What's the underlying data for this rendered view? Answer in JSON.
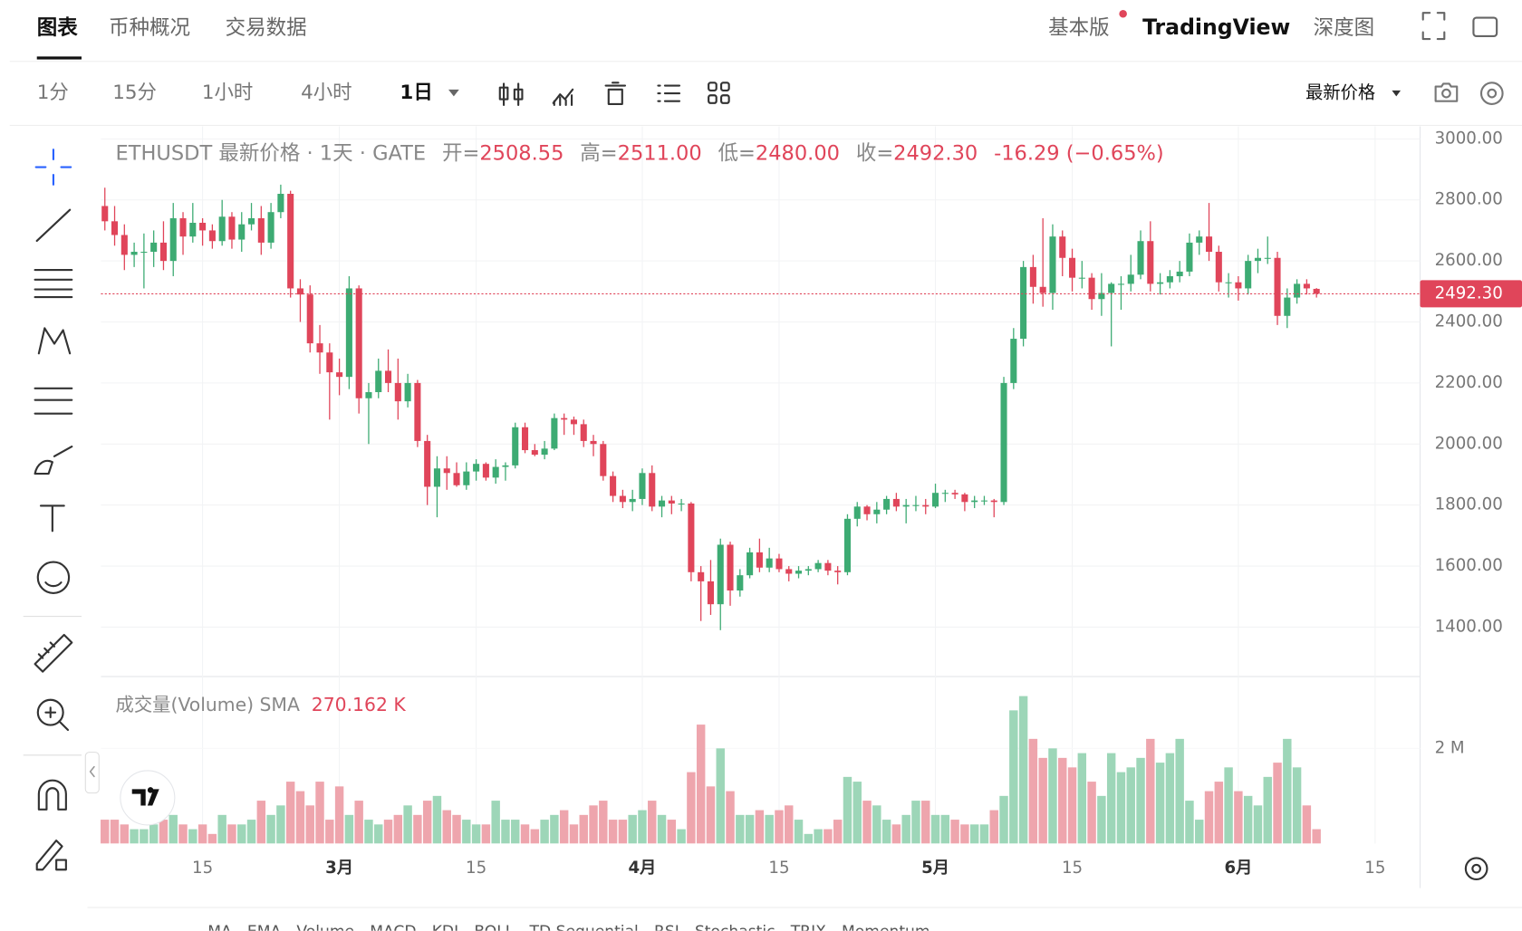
{
  "tabs": [
    "图表",
    "币种概况",
    "交易数据"
  ],
  "header_right": {
    "basic": "基本版",
    "tradingview": "TradingView",
    "depth": "深度图"
  },
  "intervals": [
    "1分",
    "15分",
    "1小时",
    "4小时",
    "1日"
  ],
  "price_source": "最新价格",
  "legend": {
    "symbol": "ETHUSDT 最新价格 · 1天 · GATE",
    "items": [
      {
        "label": "开=",
        "value": "2508.55"
      },
      {
        "label": "高=",
        "value": "2511.00"
      },
      {
        "label": "低=",
        "value": "2480.00"
      },
      {
        "label": "收=",
        "value": "2492.30"
      }
    ],
    "change": "-16.29 (−0.65%)"
  },
  "volume_legend": {
    "title": "成交量(Volume) SMA",
    "value": "270.162 K"
  },
  "indicators": [
    "MA",
    "EMA",
    "Volume",
    "MACD",
    "KDJ",
    "BOLL",
    "TD Sequential",
    "RSI",
    "Stochastic",
    "TRIX",
    "Momentum"
  ],
  "chart_data": [
    {
      "type": "candlestick",
      "up_color": "#3dab73",
      "down_color": "#e0455a",
      "xlim": [
        -0.4,
        134.6
      ],
      "xticks": [
        {
          "value": 10,
          "label": "15"
        },
        {
          "value": 24,
          "label": "3月"
        },
        {
          "value": 38,
          "label": "15"
        },
        {
          "value": 55,
          "label": "4月"
        },
        {
          "value": 69,
          "label": "15"
        },
        {
          "value": 85,
          "label": "5月"
        },
        {
          "value": 99,
          "label": "15"
        },
        {
          "value": 116,
          "label": "6月"
        },
        {
          "value": 130,
          "label": "15"
        }
      ],
      "ylim": [
        1238,
        3041
      ],
      "yticks": [
        {
          "value": 1400,
          "label": "1400.00"
        },
        {
          "value": 1600,
          "label": "1600.00"
        },
        {
          "value": 1800,
          "label": "1800.00"
        },
        {
          "value": 2000,
          "label": "2000.00"
        },
        {
          "value": 2200,
          "label": "2200.00"
        },
        {
          "value": 2400,
          "label": "2400.00"
        },
        {
          "value": 2600,
          "label": "2600.00"
        },
        {
          "value": 2800,
          "label": "2800.00"
        },
        {
          "value": 3000,
          "label": "3000.00"
        }
      ],
      "grid": true,
      "last_value_label": "2492.30",
      "candles": [
        [
          2780,
          2840,
          2700,
          2730
        ],
        [
          2730,
          2780,
          2650,
          2685
        ],
        [
          2685,
          2720,
          2570,
          2620
        ],
        [
          2620,
          2660,
          2580,
          2630
        ],
        [
          2630,
          2690,
          2510,
          2630
        ],
        [
          2630,
          2700,
          2580,
          2660
        ],
        [
          2660,
          2730,
          2570,
          2600
        ],
        [
          2600,
          2790,
          2550,
          2740
        ],
        [
          2740,
          2760,
          2620,
          2680
        ],
        [
          2680,
          2790,
          2660,
          2725
        ],
        [
          2725,
          2740,
          2650,
          2700
        ],
        [
          2700,
          2720,
          2640,
          2665
        ],
        [
          2665,
          2800,
          2650,
          2745
        ],
        [
          2745,
          2760,
          2640,
          2670
        ],
        [
          2670,
          2760,
          2630,
          2720
        ],
        [
          2720,
          2790,
          2700,
          2740
        ],
        [
          2740,
          2780,
          2620,
          2660
        ],
        [
          2660,
          2790,
          2640,
          2760
        ],
        [
          2760,
          2850,
          2740,
          2820
        ],
        [
          2820,
          2830,
          2480,
          2510
        ],
        [
          2510,
          2540,
          2400,
          2490
        ],
        [
          2490,
          2520,
          2300,
          2330
        ],
        [
          2330,
          2390,
          2230,
          2300
        ],
        [
          2300,
          2330,
          2080,
          2235
        ],
        [
          2235,
          2280,
          2160,
          2220
        ],
        [
          2220,
          2550,
          2180,
          2510
        ],
        [
          2510,
          2520,
          2100,
          2150
        ],
        [
          2150,
          2200,
          2000,
          2170
        ],
        [
          2170,
          2280,
          2150,
          2240
        ],
        [
          2240,
          2310,
          2170,
          2200
        ],
        [
          2200,
          2280,
          2080,
          2140
        ],
        [
          2140,
          2230,
          2120,
          2200
        ],
        [
          2200,
          2210,
          1990,
          2010
        ],
        [
          2010,
          2030,
          1800,
          1860
        ],
        [
          1860,
          1960,
          1760,
          1920
        ],
        [
          1920,
          1960,
          1850,
          1905
        ],
        [
          1905,
          1940,
          1860,
          1865
        ],
        [
          1865,
          1940,
          1850,
          1910
        ],
        [
          1910,
          1950,
          1880,
          1935
        ],
        [
          1935,
          1940,
          1880,
          1890
        ],
        [
          1890,
          1950,
          1870,
          1925
        ],
        [
          1925,
          1940,
          1880,
          1930
        ],
        [
          1930,
          2070,
          1920,
          2055
        ],
        [
          2055,
          2070,
          1970,
          1980
        ],
        [
          1980,
          2000,
          1960,
          1965
        ],
        [
          1965,
          2010,
          1950,
          1985
        ],
        [
          1985,
          2100,
          1980,
          2085
        ],
        [
          2085,
          2100,
          2030,
          2080
        ],
        [
          2080,
          2090,
          2030,
          2065
        ],
        [
          2065,
          2080,
          1990,
          2010
        ],
        [
          2010,
          2030,
          1960,
          2000
        ],
        [
          2000,
          2010,
          1880,
          1895
        ],
        [
          1895,
          1910,
          1810,
          1830
        ],
        [
          1830,
          1850,
          1790,
          1810
        ],
        [
          1810,
          1850,
          1780,
          1820
        ],
        [
          1820,
          1920,
          1800,
          1905
        ],
        [
          1905,
          1930,
          1780,
          1795
        ],
        [
          1795,
          1830,
          1760,
          1815
        ],
        [
          1815,
          1830,
          1770,
          1805
        ],
        [
          1805,
          1820,
          1780,
          1805
        ],
        [
          1805,
          1810,
          1550,
          1580
        ],
        [
          1580,
          1600,
          1420,
          1550
        ],
        [
          1550,
          1620,
          1440,
          1475
        ],
        [
          1475,
          1690,
          1390,
          1670
        ],
        [
          1670,
          1680,
          1470,
          1520
        ],
        [
          1520,
          1590,
          1500,
          1570
        ],
        [
          1570,
          1660,
          1560,
          1645
        ],
        [
          1645,
          1690,
          1580,
          1595
        ],
        [
          1595,
          1660,
          1580,
          1625
        ],
        [
          1625,
          1640,
          1580,
          1590
        ],
        [
          1590,
          1600,
          1550,
          1575
        ],
        [
          1575,
          1600,
          1560,
          1585
        ],
        [
          1585,
          1600,
          1570,
          1590
        ],
        [
          1590,
          1620,
          1580,
          1610
        ],
        [
          1610,
          1620,
          1570,
          1585
        ],
        [
          1585,
          1600,
          1540,
          1580
        ],
        [
          1580,
          1770,
          1570,
          1755
        ],
        [
          1755,
          1810,
          1730,
          1795
        ],
        [
          1795,
          1800,
          1750,
          1770
        ],
        [
          1770,
          1810,
          1740,
          1785
        ],
        [
          1785,
          1830,
          1770,
          1820
        ],
        [
          1820,
          1840,
          1780,
          1795
        ],
        [
          1795,
          1820,
          1740,
          1800
        ],
        [
          1800,
          1830,
          1780,
          1800
        ],
        [
          1800,
          1820,
          1770,
          1795
        ],
        [
          1795,
          1870,
          1790,
          1840
        ],
        [
          1840,
          1850,
          1810,
          1840
        ],
        [
          1840,
          1850,
          1820,
          1835
        ],
        [
          1835,
          1840,
          1780,
          1810
        ],
        [
          1810,
          1830,
          1790,
          1815
        ],
        [
          1815,
          1830,
          1800,
          1815
        ],
        [
          1815,
          1820,
          1760,
          1810
        ],
        [
          1810,
          2220,
          1800,
          2200
        ],
        [
          2200,
          2380,
          2180,
          2345
        ],
        [
          2345,
          2600,
          2320,
          2580
        ],
        [
          2580,
          2620,
          2460,
          2515
        ],
        [
          2515,
          2740,
          2450,
          2495
        ],
        [
          2495,
          2720,
          2440,
          2680
        ],
        [
          2680,
          2700,
          2550,
          2610
        ],
        [
          2610,
          2640,
          2500,
          2545
        ],
        [
          2545,
          2600,
          2510,
          2545
        ],
        [
          2545,
          2560,
          2440,
          2475
        ],
        [
          2475,
          2560,
          2420,
          2495
        ],
        [
          2495,
          2530,
          2320,
          2525
        ],
        [
          2525,
          2550,
          2440,
          2525
        ],
        [
          2525,
          2620,
          2500,
          2555
        ],
        [
          2555,
          2700,
          2540,
          2665
        ],
        [
          2665,
          2730,
          2500,
          2525
        ],
        [
          2525,
          2560,
          2490,
          2530
        ],
        [
          2530,
          2570,
          2510,
          2550
        ],
        [
          2550,
          2600,
          2530,
          2565
        ],
        [
          2565,
          2690,
          2550,
          2660
        ],
        [
          2660,
          2700,
          2620,
          2680
        ],
        [
          2680,
          2790,
          2600,
          2630
        ],
        [
          2630,
          2650,
          2500,
          2530
        ],
        [
          2530,
          2560,
          2480,
          2530
        ],
        [
          2530,
          2550,
          2470,
          2510
        ],
        [
          2510,
          2620,
          2490,
          2600
        ],
        [
          2600,
          2640,
          2560,
          2610
        ],
        [
          2610,
          2680,
          2590,
          2610
        ],
        [
          2610,
          2630,
          2390,
          2420
        ],
        [
          2420,
          2510,
          2380,
          2480
        ],
        [
          2480,
          2540,
          2460,
          2525
        ],
        [
          2525,
          2540,
          2490,
          2510
        ],
        [
          2508.55,
          2511,
          2480,
          2492.3
        ]
      ]
    },
    {
      "type": "bar",
      "up_color": "#9dd6b8",
      "down_color": "#eea5ad",
      "xlim": [
        -0.4,
        134.6
      ],
      "ylim": [
        0,
        3.45
      ],
      "yticks": [
        {
          "value": 2,
          "label": "2 M"
        }
      ],
      "values": [
        0.5,
        0.5,
        0.4,
        0.3,
        0.3,
        0.4,
        0.5,
        0.6,
        0.4,
        0.3,
        0.4,
        0.2,
        0.6,
        0.4,
        0.4,
        0.5,
        0.9,
        0.6,
        0.8,
        1.3,
        1.1,
        0.8,
        1.3,
        0.5,
        1.2,
        0.6,
        0.9,
        0.5,
        0.4,
        0.5,
        0.6,
        0.8,
        0.6,
        0.9,
        1.0,
        0.7,
        0.6,
        0.5,
        0.4,
        0.4,
        0.9,
        0.5,
        0.5,
        0.4,
        0.3,
        0.5,
        0.6,
        0.7,
        0.4,
        0.6,
        0.8,
        0.9,
        0.5,
        0.5,
        0.6,
        0.7,
        0.9,
        0.6,
        0.5,
        0.3,
        1.5,
        2.5,
        1.2,
        2.0,
        1.1,
        0.6,
        0.6,
        0.7,
        0.6,
        0.7,
        0.8,
        0.5,
        0.2,
        0.3,
        0.3,
        0.5,
        1.4,
        1.3,
        0.9,
        0.8,
        0.5,
        0.4,
        0.6,
        0.9,
        0.9,
        0.6,
        0.6,
        0.5,
        0.4,
        0.4,
        0.4,
        0.7,
        1.0,
        2.8,
        3.1,
        2.2,
        1.8,
        2.0,
        1.8,
        1.6,
        1.9,
        1.3,
        1.0,
        1.9,
        1.5,
        1.6,
        1.8,
        2.2,
        1.7,
        1.9,
        2.2,
        0.9,
        0.5,
        1.1,
        1.3,
        1.6,
        1.1,
        1.0,
        0.8,
        1.4,
        1.7,
        2.2,
        1.6,
        0.8,
        0.3
      ]
    }
  ]
}
